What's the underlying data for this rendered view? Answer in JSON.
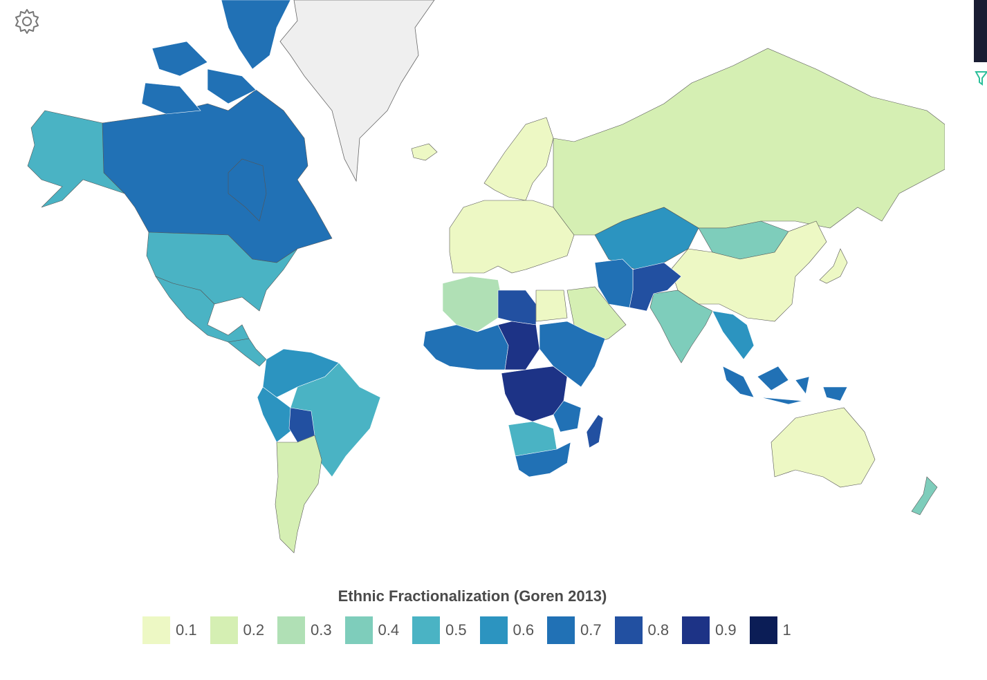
{
  "map": {
    "title": "Ethnic Fractionalization (Goren 2013)",
    "no_data_color": "#efefef",
    "border_color": "#ffffff",
    "legend": [
      {
        "label": "0.1",
        "color": "#edf8c4"
      },
      {
        "label": "0.2",
        "color": "#d5efb3"
      },
      {
        "label": "0.3",
        "color": "#b0e0b5"
      },
      {
        "label": "0.4",
        "color": "#7ecdbb"
      },
      {
        "label": "0.5",
        "color": "#4ab3c4"
      },
      {
        "label": "0.6",
        "color": "#2c94c0"
      },
      {
        "label": "0.7",
        "color": "#2171b5"
      },
      {
        "label": "0.8",
        "color": "#2250a1"
      },
      {
        "label": "0.9",
        "color": "#1d3386"
      },
      {
        "label": "1",
        "color": "#0b1d56"
      }
    ],
    "regions": [
      {
        "name": "greenland",
        "value": null
      },
      {
        "name": "canada",
        "value": 0.7
      },
      {
        "name": "arctic-archipelago",
        "value": 0.7
      },
      {
        "name": "alaska",
        "value": 0.5
      },
      {
        "name": "usa",
        "value": 0.5
      },
      {
        "name": "mexico",
        "value": 0.5
      },
      {
        "name": "central-america",
        "value": 0.5
      },
      {
        "name": "brazil",
        "value": 0.5
      },
      {
        "name": "colombia-venezuela",
        "value": 0.6
      },
      {
        "name": "peru-ecuador",
        "value": 0.6
      },
      {
        "name": "bolivia",
        "value": 0.8
      },
      {
        "name": "argentina-chile",
        "value": 0.2
      },
      {
        "name": "russia",
        "value": 0.2
      },
      {
        "name": "china",
        "value": 0.1
      },
      {
        "name": "mongolia",
        "value": 0.4
      },
      {
        "name": "kazakhstan",
        "value": 0.6
      },
      {
        "name": "india",
        "value": 0.4
      },
      {
        "name": "afghanistan-pakistan",
        "value": 0.8
      },
      {
        "name": "iran",
        "value": 0.7
      },
      {
        "name": "saudi-arabia",
        "value": 0.2
      },
      {
        "name": "north-africa",
        "value": 0.3
      },
      {
        "name": "libya",
        "value": 0.8
      },
      {
        "name": "egypt",
        "value": 0.1
      },
      {
        "name": "west-africa",
        "value": 0.7
      },
      {
        "name": "chad-nigeria",
        "value": 0.9
      },
      {
        "name": "central-africa",
        "value": 0.9
      },
      {
        "name": "east-africa",
        "value": 0.7
      },
      {
        "name": "southern-africa",
        "value": 0.7
      },
      {
        "name": "namibia-botswana",
        "value": 0.5
      },
      {
        "name": "madagascar",
        "value": 0.8
      },
      {
        "name": "europe",
        "value": 0.1
      },
      {
        "name": "scandinavia",
        "value": 0.1
      },
      {
        "name": "iceland",
        "value": 0.1
      },
      {
        "name": "southeast-asia",
        "value": 0.6
      },
      {
        "name": "indonesia",
        "value": 0.7
      },
      {
        "name": "australia",
        "value": 0.1
      },
      {
        "name": "new-zealand",
        "value": 0.4
      },
      {
        "name": "japan",
        "value": 0.1
      }
    ]
  }
}
